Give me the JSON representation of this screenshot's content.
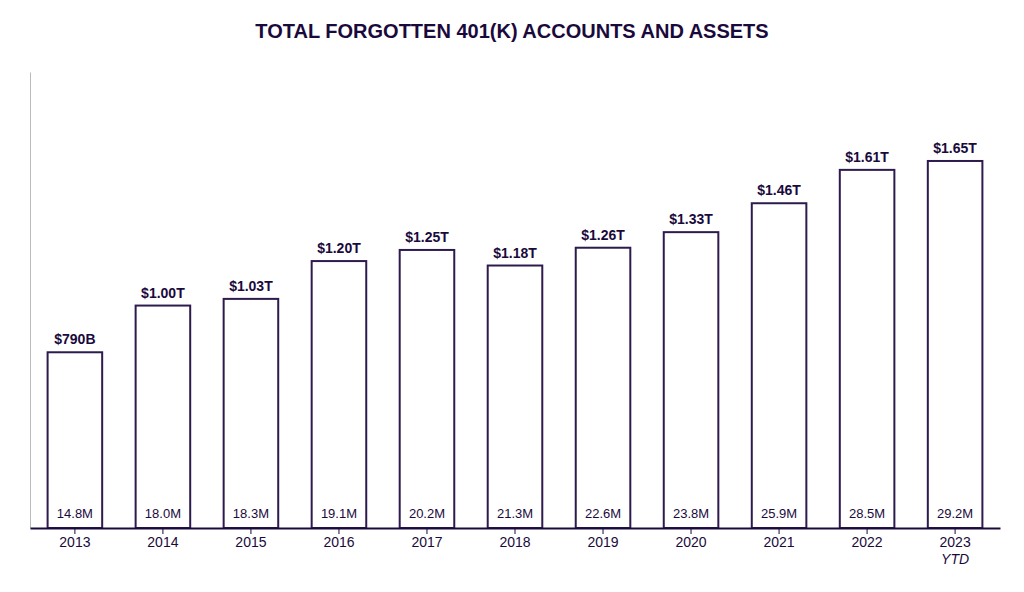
{
  "chart_data": {
    "type": "bar",
    "title": "TOTAL FORGOTTEN 401(K) ACCOUNTS AND ASSETS",
    "categories": [
      "2013",
      "2014",
      "2015",
      "2016",
      "2017",
      "2018",
      "2019",
      "2020",
      "2021",
      "2022",
      "2023\nYTD"
    ],
    "values": [
      790,
      1000,
      1030,
      1200,
      1250,
      1180,
      1260,
      1330,
      1460,
      1610,
      1650
    ],
    "value_labels": [
      "$790B",
      "$1.00T",
      "$1.03T",
      "$1.20T",
      "$1.25T",
      "$1.18T",
      "$1.26T",
      "$1.33T",
      "$1.46T",
      "$1.61T",
      "$1.65T"
    ],
    "annotations": [
      "14.8M",
      "18.0M",
      "18.3M",
      "19.1M",
      "20.2M",
      "21.3M",
      "22.6M",
      "23.8M",
      "25.9M",
      "28.5M",
      "29.2M"
    ],
    "color": "#FFFFFF",
    "ylim": [
      0,
      2050
    ],
    "data_labels": true,
    "tick_labels": "x",
    "grid": false
  }
}
